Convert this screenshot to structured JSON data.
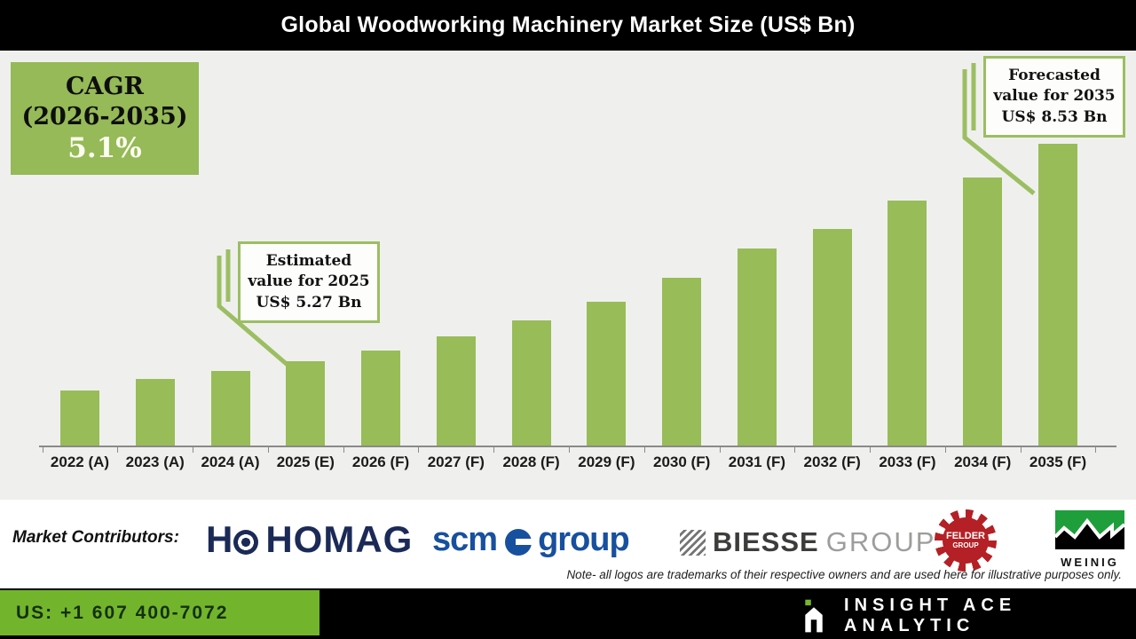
{
  "title": "Global Woodworking Machinery Market Size (US$ Bn)",
  "cagr_box": {
    "label": "CAGR",
    "range": "(2026-2035)",
    "value": "5.1%"
  },
  "callouts": {
    "estimated": {
      "line1": "Estimated",
      "line2": "value for 2025",
      "line3": "US$ 5.27 Bn"
    },
    "forecasted": {
      "line1": "Forecasted",
      "line2": "value for 2035",
      "line3": "US$ 8.53 Bn"
    }
  },
  "chart_data": {
    "type": "bar",
    "title": "Global Woodworking Machinery Market Size (US$ Bn)",
    "categories": [
      "2022 (A)",
      "2023 (A)",
      "2024 (A)",
      "2025 (E)",
      "2026 (F)",
      "2027 (F)",
      "2028 (F)",
      "2029 (F)",
      "2030 (F)",
      "2031 (F)",
      "2032 (F)",
      "2033 (F)",
      "2034 (F)",
      "2035 (F)"
    ],
    "values": [
      4.84,
      5.01,
      5.13,
      5.27,
      5.44,
      5.65,
      5.88,
      6.17,
      6.53,
      6.96,
      7.26,
      7.68,
      8.03,
      8.53
    ],
    "unit": "US$ Bn",
    "ylim": [
      4.0,
      8.6
    ],
    "grid": false,
    "bar_color": "#98BC58",
    "labeled_points": [
      {
        "category": "2025 (E)",
        "value": 5.27,
        "label": "Estimated value for 2025 US$ 5.27 Bn"
      },
      {
        "category": "2035 (F)",
        "value": 8.53,
        "label": "Forecasted value for 2035 US$ 8.53 Bn"
      }
    ],
    "cagr": {
      "period": "2026-2035",
      "value_pct": 5.1
    }
  },
  "contributors": {
    "label": "Market Contributors:",
    "homag": {
      "letter": "H",
      "name": "HOMAG"
    },
    "scm": {
      "word1": "scm",
      "word2": "group"
    },
    "biesse": {
      "bold": "BIESSE",
      "light": "GROUP"
    },
    "felder": {
      "line1": "FELDER",
      "line2": "GROUP"
    },
    "weinig": {
      "name": "WEINIG"
    },
    "note": "Note- all logos are trademarks of their respective owners and are used here for illustrative purposes only."
  },
  "footer": {
    "phone": "US: +1 607 400-7072",
    "brand": "INSIGHT ACE ANALYTIC"
  },
  "icons": {
    "homag_mark": "circle-dot-icon",
    "scm_mark": "blue-circle-e-icon",
    "biesse_mark": "hatched-square-icon",
    "felder_mark": "red-gear-badge-icon",
    "weinig_mark": "green-black-skyline-icon",
    "brand_mark": "insight-ace-a-icon"
  },
  "colors": {
    "bar_green": "#98BC58",
    "cagr_box_green": "#95BA57",
    "callout_border_green": "#9CBE63",
    "footer_green": "#72B52C",
    "homag_navy": "#1B2A56",
    "scm_blue": "#17509E",
    "biesse_dark": "#3C3C3B",
    "biesse_gray": "#9D9D9C",
    "felder_red": "#B42025",
    "weinig_green": "#1F9E3C",
    "chart_background": "#EFF0ED"
  }
}
